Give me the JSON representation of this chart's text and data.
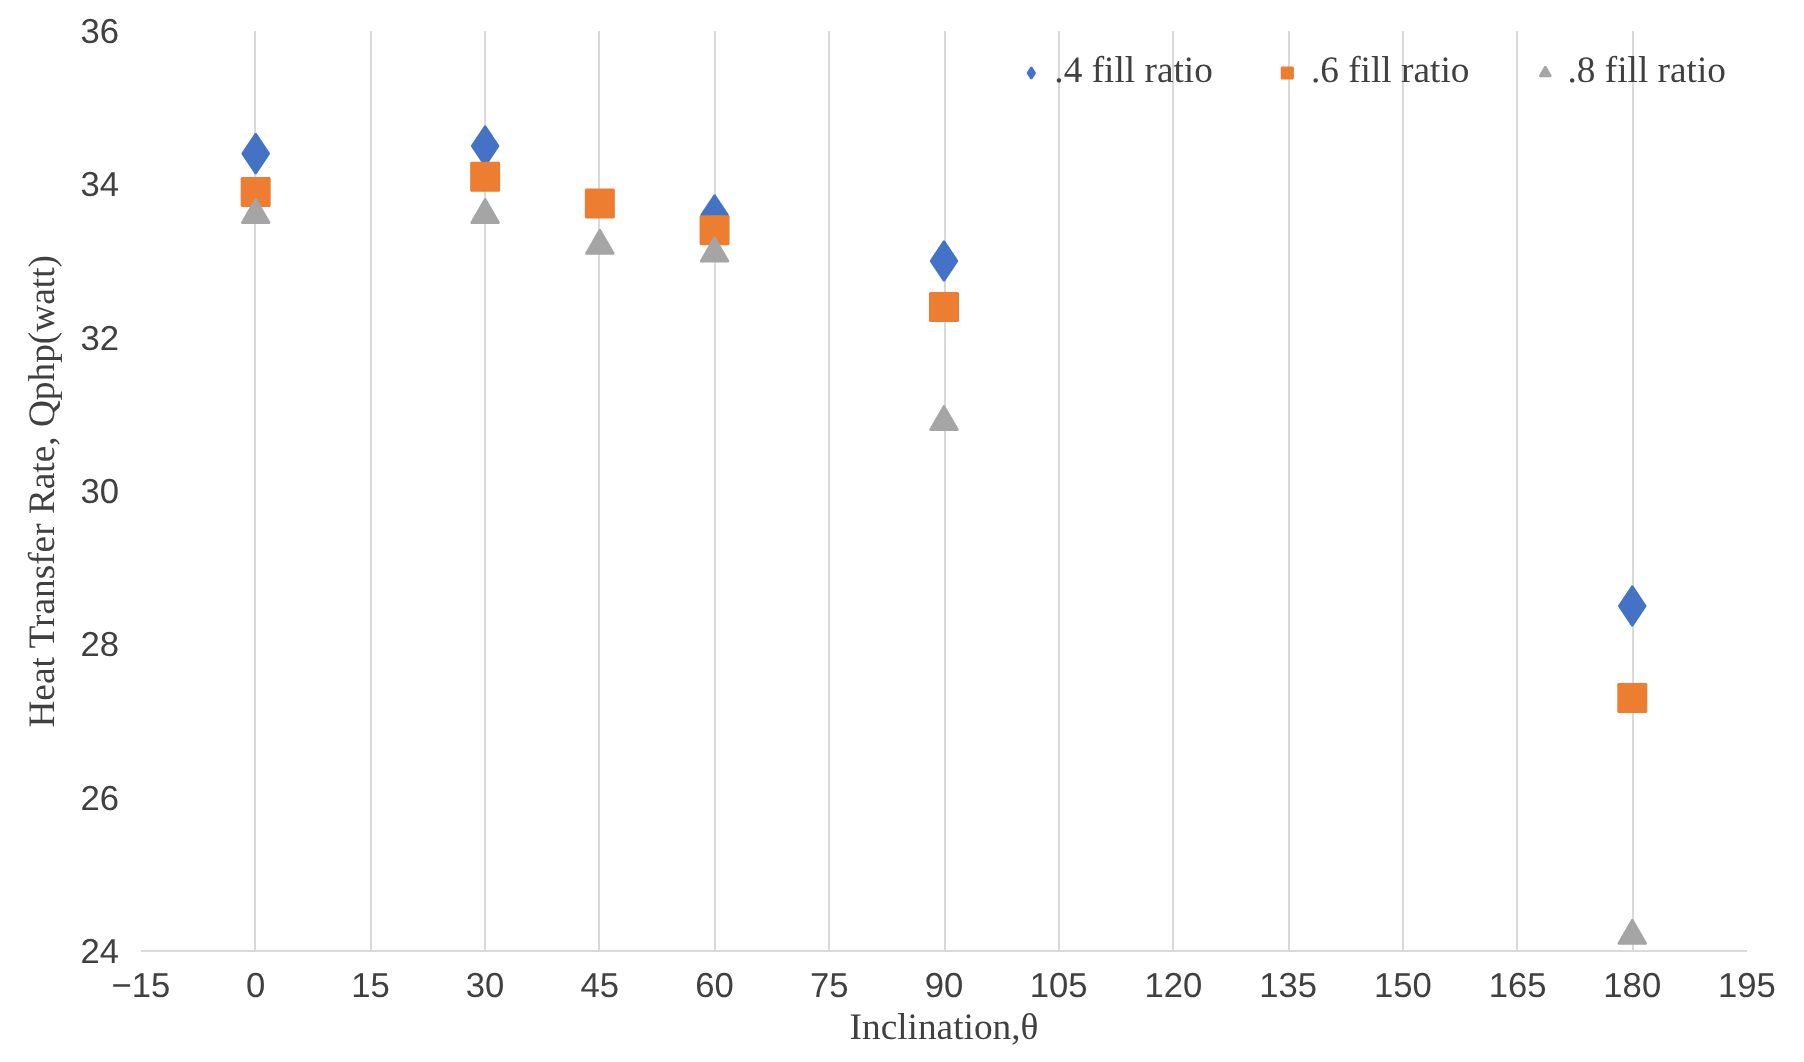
{
  "chart_data": {
    "type": "scatter",
    "xlabel": "Inclination,θ",
    "ylabel": "Heat Transfer Rate, Qphp(watt)",
    "x": [
      0,
      30,
      45,
      60,
      90,
      180
    ],
    "series": [
      {
        "name": ".4 fill ratio",
        "color": "#4472c4",
        "marker": "diamond",
        "values": [
          34.4,
          34.5,
          null,
          33.6,
          33.0,
          28.5
        ]
      },
      {
        "name": ".6 fill ratio",
        "color": "#ed7d31",
        "marker": "square",
        "values": [
          33.9,
          34.1,
          33.75,
          33.4,
          32.4,
          27.3
        ]
      },
      {
        "name": ".8 fill ratio",
        "color": "#a5a5a5",
        "marker": "triangle",
        "values": [
          33.6,
          33.6,
          33.2,
          33.1,
          30.9,
          24.2
        ]
      }
    ],
    "xlim": [
      -15,
      195
    ],
    "xticks": [
      -15,
      0,
      15,
      30,
      45,
      60,
      75,
      90,
      105,
      120,
      135,
      150,
      165,
      180,
      195
    ],
    "ylim": [
      24,
      36
    ],
    "yticks": [
      24,
      26,
      28,
      30,
      32,
      34,
      36
    ],
    "grid": "x",
    "legend": "top right"
  }
}
